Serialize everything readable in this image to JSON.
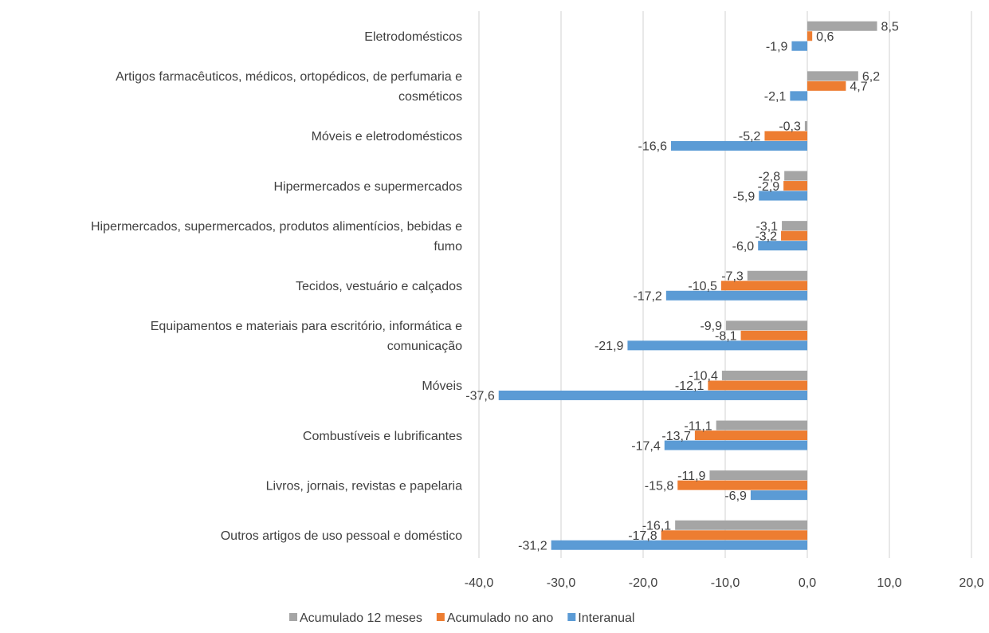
{
  "chart_data": {
    "type": "bar",
    "orientation": "horizontal",
    "categories": [
      [
        "Eletrodomésticos"
      ],
      [
        "Artigos farmacêuticos, médicos, ortopédicos, de perfumaria e",
        "cosméticos"
      ],
      [
        "Móveis e eletrodomésticos"
      ],
      [
        "Hipermercados e supermercados"
      ],
      [
        "Hipermercados, supermercados, produtos alimentícios, bebidas e",
        "fumo"
      ],
      [
        "Tecidos, vestuário e calçados"
      ],
      [
        "Equipamentos e materiais para escritório, informática e",
        "comunicação"
      ],
      [
        "Móveis"
      ],
      [
        "Combustíveis e lubrificantes"
      ],
      [
        "Livros, jornais, revistas e papelaria"
      ],
      [
        "Outros artigos de uso pessoal e doméstico"
      ]
    ],
    "series": [
      {
        "name": "Acumulado 12 meses",
        "color": "#a5a5a5",
        "values": [
          8.5,
          6.2,
          -0.3,
          -2.8,
          -3.1,
          -7.3,
          -9.9,
          -10.4,
          -11.1,
          -11.9,
          -16.1
        ],
        "labels": [
          "8,5",
          "6,2",
          "-0,3",
          "-2,8",
          "-3,1",
          "-7,3",
          "-9,9",
          "-10,4",
          "-11,1",
          "-11,9",
          "-16,1"
        ]
      },
      {
        "name": "Acumulado no ano",
        "color": "#ed7d31",
        "values": [
          0.6,
          4.7,
          -5.2,
          -2.9,
          -3.2,
          -10.5,
          -8.1,
          -12.1,
          -13.7,
          -15.8,
          -17.8
        ],
        "labels": [
          "0,6",
          "4,7",
          "-5,2",
          "-2,9",
          "-3,2",
          "-10,5",
          "-8,1",
          "-12,1",
          "-13,7",
          "-15,8",
          "-17,8"
        ]
      },
      {
        "name": "Interanual",
        "color": "#5b9bd5",
        "values": [
          -1.9,
          -2.1,
          -16.6,
          -5.9,
          -6.0,
          -17.2,
          -21.9,
          -37.6,
          -17.4,
          -6.9,
          -31.2
        ],
        "labels": [
          "-1,9",
          "-2,1",
          "-16,6",
          "-5,9",
          "-6,0",
          "-17,2",
          "-21,9",
          "-37,6",
          "-17,4",
          "-6,9",
          "-31,2"
        ]
      }
    ],
    "xlim": [
      -40,
      20
    ],
    "xticks": [
      -40,
      -30,
      -20,
      -10,
      0,
      10,
      20
    ],
    "xtick_labels": [
      "-40,0",
      "-30,0",
      "-20,0",
      "-10,0",
      "0,0",
      "10,0",
      "20,0"
    ],
    "grid": true,
    "legend_position": "bottom"
  }
}
